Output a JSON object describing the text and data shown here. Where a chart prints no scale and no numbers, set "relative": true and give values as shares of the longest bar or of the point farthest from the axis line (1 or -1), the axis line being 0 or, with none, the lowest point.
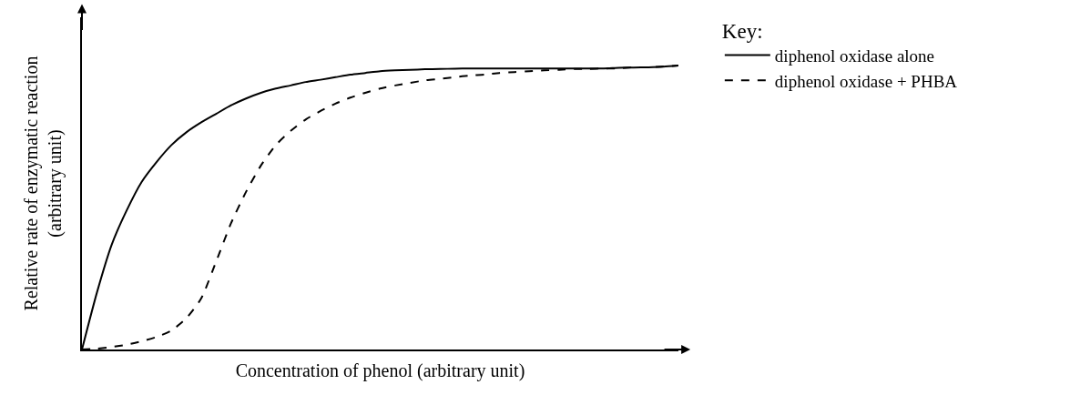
{
  "chart_data": {
    "type": "line",
    "relative": true,
    "xlabel": "Concentration of phenol (arbitrary unit)",
    "ylabel": "Relative rate of enzymatic reaction\n(arbitrary unit)",
    "legend_title": "Key:",
    "legend": "right",
    "tick_labels": false,
    "marker": "none",
    "categories": [
      null,
      null,
      null,
      null,
      null,
      null,
      null,
      null,
      null,
      null,
      null,
      null,
      null,
      null,
      null,
      null,
      null,
      null,
      null,
      null,
      null,
      null,
      null,
      null,
      null,
      null,
      null,
      null,
      null,
      null,
      null,
      null,
      null,
      null,
      null,
      null,
      null,
      null,
      null,
      null,
      null
    ],
    "series": [
      {
        "name": "diphenol oxidase alone",
        "color": "#000000",
        "line_style": "solid",
        "values": [
          0,
          0.2,
          0.37,
          0.49,
          0.59,
          0.66,
          0.72,
          0.765,
          0.8,
          0.83,
          0.86,
          0.884,
          0.904,
          0.919,
          0.93,
          0.942,
          0.95,
          0.959,
          0.968,
          0.974,
          0.98,
          0.983,
          0.985,
          0.987,
          0.988,
          0.989,
          0.99,
          0.99,
          0.99,
          0.99,
          0.99,
          0.99,
          0.99,
          0.99,
          0.99,
          0.99,
          0.992,
          0.993,
          0.994,
          0.996,
          1
        ]
      },
      {
        "name": "diphenol oxidase + PHBA",
        "color": "#000000",
        "line_style": "dashed",
        "values": [
          0,
          0.003,
          0.009,
          0.017,
          0.029,
          0.044,
          0.067,
          0.11,
          0.18,
          0.31,
          0.445,
          0.555,
          0.648,
          0.72,
          0.77,
          0.81,
          0.84,
          0.866,
          0.887,
          0.904,
          0.919,
          0.93,
          0.939,
          0.948,
          0.953,
          0.959,
          0.965,
          0.968,
          0.974,
          0.977,
          0.98,
          0.983,
          0.985,
          0.988,
          0.988,
          0.99,
          0.99,
          0.994,
          0.994,
          0.997,
          1
        ]
      }
    ]
  }
}
